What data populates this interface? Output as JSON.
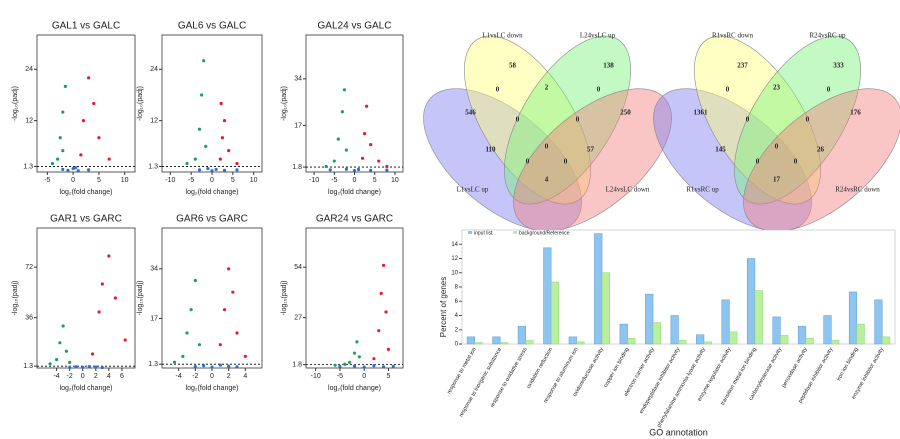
{
  "chart_data": [
    {
      "type": "scatter",
      "title": "GAL1 vs GALC",
      "x_label": "log₂(fold change)",
      "y_label": "-log₁₀(padj)",
      "xlim": [
        -7,
        12
      ],
      "ylim": [
        0,
        32
      ],
      "xticks": [
        -5,
        0,
        5,
        10
      ],
      "yticks": [
        1.3,
        12,
        24
      ],
      "threshold_line": true,
      "series": [
        {
          "color": "#1a9e6a",
          "x": [
            -3,
            -2.5,
            -2,
            -1.5,
            -4,
            -2
          ],
          "values": [
            3,
            8,
            14,
            20,
            2,
            5
          ]
        },
        {
          "color": "#e8173c",
          "x": [
            1.5,
            2,
            3,
            4,
            5,
            7
          ],
          "values": [
            4,
            12,
            22,
            16,
            8,
            3
          ]
        },
        {
          "color": "#2a6fd6",
          "x": [
            -1,
            0,
            1,
            -2,
            3,
            0.5
          ],
          "values": [
            0.4,
            0.8,
            0.3,
            0.6,
            0.5,
            1
          ]
        }
      ]
    },
    {
      "type": "scatter",
      "title": "GAL6 vs GALC",
      "x_label": "log₂(fold change)",
      "y_label": "-log₁₀(padj)",
      "xlim": [
        -12,
        12
      ],
      "ylim": [
        0,
        32
      ],
      "xticks": [
        -10,
        -5,
        0,
        5,
        10
      ],
      "yticks": [
        1.3,
        12,
        24
      ],
      "threshold_line": true,
      "series": [
        {
          "color": "#1a9e6a",
          "x": [
            -4,
            -3,
            -2.5,
            -2,
            -6,
            -1.5
          ],
          "values": [
            3,
            10,
            18,
            26,
            2,
            6
          ]
        },
        {
          "color": "#e8173c",
          "x": [
            2,
            2.5,
            3,
            4,
            6,
            2.2
          ],
          "values": [
            3,
            8,
            12,
            5,
            2,
            16
          ]
        },
        {
          "color": "#2a6fd6",
          "x": [
            -3,
            -1,
            0,
            1,
            3,
            6
          ],
          "values": [
            0.5,
            0.8,
            0.3,
            0.6,
            0.4,
            0.5
          ]
        }
      ]
    },
    {
      "type": "scatter",
      "title": "GAL24 vs GALC",
      "x_label": "log₂(fold change)",
      "y_label": "-log₁₀(padj)",
      "xlim": [
        -12,
        12
      ],
      "ylim": [
        0,
        50
      ],
      "xticks": [
        -10,
        -5,
        0,
        5,
        10
      ],
      "yticks": [
        1.8,
        17,
        34
      ],
      "threshold_line": true,
      "series": [
        {
          "color": "#1a9e6a",
          "x": [
            -5,
            -4,
            -3,
            -2.5,
            -2,
            -7
          ],
          "values": [
            4,
            12,
            22,
            30,
            8,
            2
          ]
        },
        {
          "color": "#e8173c",
          "x": [
            2,
            2.5,
            3,
            4,
            6,
            8
          ],
          "values": [
            5,
            14,
            24,
            10,
            4,
            2
          ]
        },
        {
          "color": "#2a6fd6",
          "x": [
            -6,
            -2,
            0,
            1,
            4,
            8
          ],
          "values": [
            0.8,
            1,
            0.5,
            0.9,
            0.6,
            0.7
          ]
        }
      ]
    },
    {
      "type": "scatter",
      "title": "GAR1 vs GARC",
      "x_label": "log₂(fold change)",
      "y_label": "-log₁₀(padj)",
      "xlim": [
        -7,
        8
      ],
      "ylim": [
        0,
        100
      ],
      "xticks": [
        -4,
        -2,
        0,
        2,
        4,
        6
      ],
      "yticks": [
        1.3,
        36,
        72
      ],
      "threshold_line": true,
      "series": [
        {
          "color": "#1a9e6a",
          "x": [
            -4,
            -3.5,
            -3,
            -2.5,
            -2,
            -5
          ],
          "values": [
            6,
            18,
            30,
            12,
            4,
            3
          ]
        },
        {
          "color": "#e8173c",
          "x": [
            1.5,
            2.5,
            3,
            4,
            5,
            6.5
          ],
          "values": [
            10,
            40,
            60,
            80,
            50,
            20
          ]
        },
        {
          "color": "#2a6fd6",
          "x": [
            -2,
            -1,
            0,
            1,
            2,
            3
          ],
          "values": [
            0.4,
            0.8,
            0.5,
            1,
            0.6,
            0.3
          ]
        }
      ]
    },
    {
      "type": "scatter",
      "title": "GAR6 vs GARC",
      "x_label": "log₂(fold change)",
      "y_label": "-log₁₀(padj)",
      "xlim": [
        -6,
        6
      ],
      "ylim": [
        0,
        48
      ],
      "xticks": [
        -4,
        -2,
        0,
        2,
        4
      ],
      "yticks": [
        1.3,
        17,
        34
      ],
      "threshold_line": true,
      "series": [
        {
          "color": "#1a9e6a",
          "x": [
            -3.5,
            -3,
            -2.5,
            -2,
            -1.5,
            -4.5
          ],
          "values": [
            4,
            12,
            20,
            30,
            8,
            2
          ]
        },
        {
          "color": "#e8173c",
          "x": [
            1,
            1.5,
            2,
            2.5,
            3,
            4
          ],
          "values": [
            8,
            20,
            34,
            26,
            12,
            4
          ]
        },
        {
          "color": "#2a6fd6",
          "x": [
            -2,
            -1,
            0,
            1,
            2,
            3
          ],
          "values": [
            0.5,
            0.8,
            0.3,
            1,
            0.6,
            0.4
          ]
        }
      ]
    },
    {
      "type": "scatter",
      "title": "GAR24 vs GARC",
      "x_label": "log₂(fold change)",
      "y_label": "-log₁₀(padj)",
      "xlim": [
        -12,
        8
      ],
      "ylim": [
        0,
        75
      ],
      "xticks": [
        -10,
        -5,
        0,
        5
      ],
      "yticks": [
        1.8,
        27,
        54
      ],
      "threshold_line": true,
      "series": [
        {
          "color": "#1a9e6a",
          "x": [
            -3,
            -2,
            -1.5,
            -1,
            -4,
            -6
          ],
          "values": [
            3,
            8,
            14,
            6,
            2,
            1.5
          ]
        },
        {
          "color": "#e8173c",
          "x": [
            2,
            3,
            3.5,
            4,
            4.5,
            5
          ],
          "values": [
            5,
            20,
            40,
            55,
            30,
            10
          ]
        },
        {
          "color": "#2a6fd6",
          "x": [
            -5,
            -2,
            0,
            2,
            4,
            6
          ],
          "values": [
            0.8,
            1,
            0.5,
            1.2,
            0.6,
            0.9
          ]
        }
      ]
    },
    {
      "type": "venn",
      "sets": [
        {
          "name": "L1vsLC up",
          "color": "#3b3bd6"
        },
        {
          "name": "L1vsLC down",
          "color": "#8a8a20"
        },
        {
          "name": "L24vsLC up",
          "color": "#2f8f2f"
        },
        {
          "name": "L24vsLC down",
          "color": "#d63b3b"
        }
      ],
      "counts": [
        546,
        58,
        138,
        250,
        0,
        2,
        0,
        110,
        0,
        0,
        57,
        0,
        0,
        0,
        4
      ]
    },
    {
      "type": "venn",
      "sets": [
        {
          "name": "R1vsRC up",
          "color": "#2222cc"
        },
        {
          "name": "R1vsRC down",
          "color": "#7a7a10"
        },
        {
          "name": "R24vsRC up",
          "color": "#1f8a1f"
        },
        {
          "name": "R24vsRC down",
          "color": "#cc2222"
        }
      ],
      "counts": [
        1361,
        237,
        333,
        176,
        0,
        23,
        0,
        145,
        0,
        0,
        26,
        0,
        0,
        0,
        17
      ]
    },
    {
      "type": "bar",
      "x_label": "GO annotation",
      "y_label": "Percent of genes",
      "ylim": [
        0,
        16
      ],
      "yticks": [
        0,
        2,
        4,
        6,
        8,
        10,
        12,
        14
      ],
      "categories": [
        "response to metal ion",
        "response to inorganic substance",
        "response to oxidative stress",
        "oxidation reduction",
        "response to aluminum ion",
        "oxidoreductase activity",
        "copper ion binding",
        "electron carrier activity",
        "endopeptidase inhibitor activity",
        "phenylalanine ammonia-lyase activity",
        "enzyme regulator activity",
        "transition metal ion binding",
        "carboxylesterase activity",
        "peroxidase activity",
        "peptidase inhibitor activity",
        "iron ion binding",
        "enzyme inhibitor activity"
      ],
      "series": [
        {
          "name": "input list",
          "color": "#8ec4f0",
          "values": [
            1,
            1,
            2.5,
            13.5,
            1,
            15.5,
            2.8,
            7,
            4,
            1.3,
            6.2,
            12,
            3.8,
            2.5,
            4,
            7.3,
            6.2
          ]
        },
        {
          "name": "background/Reference",
          "color": "#b8f0a0",
          "values": [
            0.2,
            0.2,
            0.5,
            8.7,
            0.3,
            10,
            0.8,
            3,
            0.5,
            0.3,
            1.7,
            7.5,
            1.2,
            0.8,
            0.5,
            2.8,
            1
          ]
        }
      ]
    }
  ]
}
